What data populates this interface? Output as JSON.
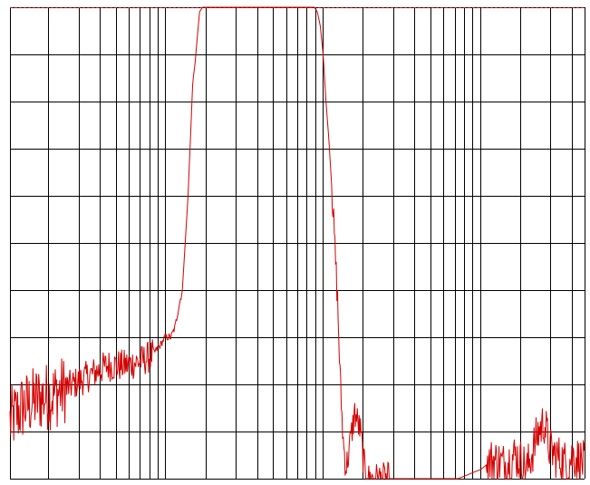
{
  "chart_data": {
    "type": "line",
    "x_scale": "log",
    "x_decades": 2.5,
    "y_divisions": 10,
    "xlim": [
      0,
      1
    ],
    "ylim": [
      0,
      1
    ],
    "grid": true,
    "title": "",
    "xlabel": "",
    "ylabel": "",
    "legend": "none",
    "line_color": "#d40000",
    "grid_color": "#000000",
    "reference_line_color": "#d40000",
    "reference_level": 1.0,
    "series": [
      {
        "x": [
          0.0,
          0.02,
          0.05,
          0.08,
          0.11,
          0.14,
          0.17,
          0.2,
          0.23,
          0.245,
          0.26,
          0.27,
          0.275,
          0.28,
          0.287,
          0.293,
          0.3,
          0.31,
          0.315,
          0.318,
          0.322,
          0.327,
          0.33,
          0.335,
          0.34,
          0.35,
          0.4,
          0.48,
          0.52,
          0.53,
          0.535,
          0.54,
          0.545,
          0.55,
          0.555,
          0.56,
          0.565,
          0.57,
          0.575,
          0.58,
          0.585,
          0.59,
          0.595,
          0.6,
          0.605,
          0.61,
          0.615,
          0.62,
          0.625,
          0.63,
          0.635,
          0.64,
          0.645,
          0.65,
          0.655,
          0.66,
          0.665,
          0.67,
          0.68,
          0.69,
          0.7,
          0.72,
          0.75,
          0.78,
          0.8,
          0.82,
          0.84,
          0.86,
          0.88,
          0.9,
          0.91,
          0.92,
          0.93,
          0.94,
          0.95,
          0.96,
          0.97,
          0.98,
          1.0
        ],
        "values": [
          0.12,
          0.15,
          0.17,
          0.18,
          0.2,
          0.22,
          0.24,
          0.24,
          0.25,
          0.26,
          0.28,
          0.3,
          0.3,
          0.3,
          0.32,
          0.36,
          0.4,
          0.6,
          0.75,
          0.84,
          0.88,
          0.95,
          0.99,
          1.0,
          1.0,
          1.0,
          1.0,
          1.0,
          1.0,
          1.0,
          0.99,
          0.96,
          0.9,
          0.8,
          0.72,
          0.62,
          0.5,
          0.38,
          0.2,
          0.08,
          0.02,
          0.06,
          0.1,
          0.14,
          0.12,
          0.1,
          0.04,
          0.0,
          0.0,
          0.0,
          0.0,
          0.0,
          0.0,
          0.0,
          0.0,
          0.0,
          0.0,
          0.0,
          0.0,
          0.0,
          0.0,
          0.0,
          0.0,
          0.0,
          0.01,
          0.02,
          0.04,
          0.03,
          0.05,
          0.02,
          0.06,
          0.1,
          0.12,
          0.06,
          0.05,
          0.04,
          0.03,
          0.05,
          0.03
        ]
      }
    ],
    "x_gridlines": [
      0.0,
      0.0657,
      0.12,
      0.1562,
      0.1838,
      0.2065,
      0.2257,
      0.2423,
      0.2569,
      0.2701,
      0.3401,
      0.3925,
      0.4302,
      0.4577,
      0.4805,
      0.4997,
      0.5163,
      0.5309,
      0.5441,
      0.6141,
      0.6665,
      0.7042,
      0.7317,
      0.7545,
      0.7737,
      0.7903,
      0.8049,
      0.8181,
      0.8881,
      0.9405,
      0.9782,
      1.0
    ]
  }
}
